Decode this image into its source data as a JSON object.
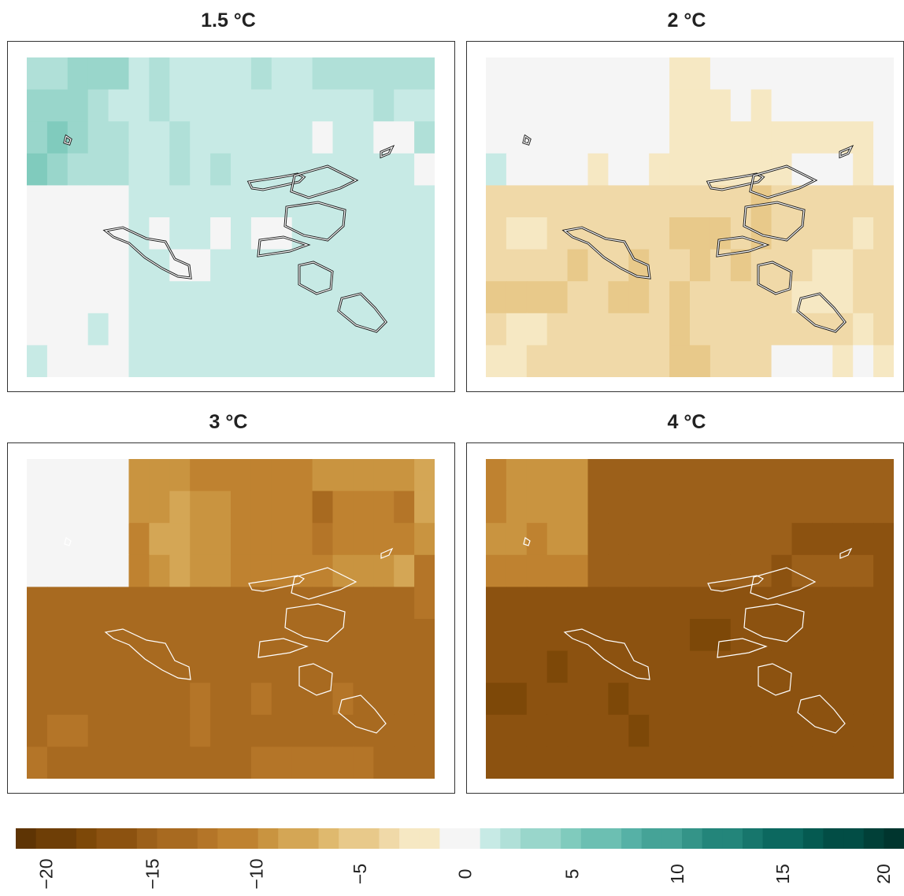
{
  "panels": [
    {
      "title": "1.5 °C",
      "region_values": [
        [
          3,
          3,
          5,
          5,
          4,
          2,
          3,
          2,
          2,
          1,
          2,
          3,
          2,
          2,
          3,
          3,
          3,
          3,
          3,
          3
        ],
        [
          4,
          4,
          4,
          3,
          2,
          2,
          3,
          2,
          2,
          2,
          2,
          2,
          2,
          2,
          2,
          2,
          2,
          3,
          2,
          2
        ],
        [
          4,
          6,
          4,
          3,
          3,
          2,
          2,
          3,
          2,
          2,
          2,
          2,
          2,
          2,
          0,
          2,
          2,
          0,
          0,
          3
        ],
        [
          6,
          4,
          3,
          3,
          3,
          1,
          2,
          3,
          2,
          3,
          2,
          2,
          2,
          2,
          2,
          2,
          2,
          2,
          2,
          0
        ]
      ],
      "south_values": [
        [
          0,
          0,
          0,
          0,
          0,
          1,
          1,
          1,
          1,
          1,
          1,
          1,
          1,
          1,
          1,
          1,
          1,
          1,
          1,
          1
        ],
        [
          0,
          0,
          0,
          0,
          0,
          1,
          0,
          1,
          1,
          0,
          1,
          0,
          0,
          1,
          1,
          1,
          1,
          1,
          1,
          1
        ],
        [
          0,
          0,
          0,
          0,
          0,
          1,
          1,
          0,
          0,
          1,
          1,
          1,
          1,
          1,
          1,
          1,
          1,
          1,
          1,
          1
        ],
        [
          0,
          0,
          0,
          0,
          0,
          1,
          1,
          1,
          1,
          1,
          1,
          1,
          1,
          1,
          1,
          1,
          1,
          1,
          1,
          1
        ],
        [
          0,
          0,
          0,
          1,
          0,
          1,
          1,
          1,
          1,
          1,
          1,
          1,
          1,
          1,
          1,
          1,
          1,
          1,
          1,
          1
        ],
        [
          1,
          0,
          0,
          0,
          0,
          1,
          1,
          1,
          1,
          1,
          1,
          1,
          1,
          1,
          1,
          1,
          1,
          1,
          1,
          1
        ]
      ]
    },
    {
      "title": "2 °C",
      "region_values": [
        [
          0,
          0,
          0,
          0,
          0,
          0,
          0,
          0,
          0,
          -1,
          -1,
          0,
          0,
          0,
          0,
          0,
          0,
          0,
          0,
          0
        ],
        [
          0,
          0,
          0,
          0,
          0,
          0,
          0,
          0,
          0,
          -1,
          -1,
          -1,
          0,
          -1,
          0,
          0,
          0,
          0,
          0,
          0
        ],
        [
          0,
          0,
          0,
          0,
          0,
          0,
          0,
          0,
          0,
          -1,
          -1,
          -1,
          -1,
          -1,
          -2,
          -2,
          -2,
          -2,
          -2,
          0
        ],
        [
          1,
          0,
          0,
          0,
          0,
          -1,
          0,
          0,
          -1,
          -1,
          -1,
          -1,
          -1,
          -1,
          -1,
          0,
          0,
          0,
          -2,
          0
        ]
      ],
      "south_values": [
        [
          -3,
          -3,
          -3,
          -3,
          -3,
          -3,
          -3,
          -3,
          -3,
          -3,
          -3,
          -3,
          -3,
          -4,
          -3,
          -3,
          -3,
          -3,
          -3,
          -3
        ],
        [
          -3,
          -2,
          -2,
          -3,
          -3,
          -3,
          -3,
          -3,
          -3,
          -4,
          -4,
          -4,
          -3,
          -4,
          -3,
          -3,
          -3,
          -3,
          -2,
          -3
        ],
        [
          -3,
          -3,
          -3,
          -3,
          -4,
          -3,
          -3,
          -4,
          -3,
          -3,
          -4,
          -3,
          -4,
          -3,
          -3,
          -3,
          -2,
          -2,
          -3,
          -3
        ],
        [
          -4,
          -4,
          -4,
          -4,
          -3,
          -3,
          -4,
          -4,
          -3,
          -4,
          -3,
          -3,
          -3,
          -3,
          -3,
          -2,
          -2,
          -2,
          -3,
          -3
        ],
        [
          -3,
          -2,
          -2,
          -3,
          -3,
          -3,
          -3,
          -3,
          -3,
          -4,
          -3,
          -3,
          -3,
          -3,
          -3,
          -3,
          -3,
          -3,
          -2,
          -3
        ],
        [
          -2,
          -2,
          -3,
          -3,
          -3,
          -3,
          -3,
          -3,
          -3,
          -4,
          -4,
          -3,
          -3,
          -3,
          0,
          0,
          0,
          -2,
          0,
          -2
        ]
      ]
    },
    {
      "title": "3 °C",
      "region_values": [
        [
          0,
          0,
          0,
          0,
          0,
          -9,
          -9,
          -9,
          -11,
          -11,
          -10,
          -10,
          -10,
          -10,
          -9,
          -9,
          -9,
          -9,
          -9,
          -8
        ],
        [
          0,
          0,
          0,
          0,
          0,
          -9,
          -9,
          -8,
          -9,
          -9,
          -10,
          -10,
          -10,
          -10,
          -13,
          -11,
          -11,
          -11,
          -12,
          -8
        ],
        [
          0,
          0,
          0,
          0,
          0,
          -10,
          -8,
          -8,
          -9,
          -9,
          -10,
          -10,
          -10,
          -11,
          -12,
          -11,
          -11,
          -11,
          -11,
          -9
        ],
        [
          0,
          0,
          0,
          0,
          0,
          -11,
          -9,
          -8,
          -9,
          -9,
          -10,
          -10,
          -10,
          -10,
          -10,
          -9,
          -9,
          -9,
          -7,
          -12
        ]
      ],
      "south_values": [
        [
          -13,
          -13,
          -13,
          -13,
          -14,
          -14,
          -13,
          -13,
          -13,
          -13,
          -14,
          -14,
          -13,
          -13,
          -13,
          -13,
          -13,
          -13,
          -13,
          -12
        ],
        [
          -13,
          -13,
          -13,
          -13,
          -13,
          -13,
          -13,
          -13,
          -14,
          -13,
          -13,
          -13,
          -13,
          -13,
          -13,
          -13,
          -13,
          -13,
          -13,
          -13
        ],
        [
          -14,
          -14,
          -14,
          -14,
          -13,
          -13,
          -13,
          -14,
          -14,
          -14,
          -13,
          -13,
          -13,
          -13,
          -13,
          -13,
          -13,
          -13,
          -13,
          -13
        ],
        [
          -14,
          -14,
          -14,
          -14,
          -14,
          -13,
          -13,
          -13,
          -12,
          -13,
          -13,
          -12,
          -13,
          -13,
          -13,
          -12,
          -13,
          -13,
          -13,
          -13
        ],
        [
          -13,
          -12,
          -12,
          -13,
          -13,
          -13,
          -13,
          -13,
          -12,
          -13,
          -13,
          -13,
          -13,
          -13,
          -13,
          -13,
          -13,
          -13,
          -13,
          -13
        ],
        [
          -12,
          -13,
          -13,
          -13,
          -13,
          -13,
          -13,
          -13,
          -13,
          -13,
          -13,
          -12,
          -12,
          -12,
          -12,
          -12,
          -12,
          -13,
          -13,
          -13
        ]
      ]
    },
    {
      "title": "4 °C",
      "region_values": [
        [
          -10,
          -9,
          -9,
          -9,
          -9,
          -15,
          -15,
          -15,
          -15,
          -15,
          -15,
          -15,
          -15,
          -15,
          -15,
          -15,
          -15,
          -15,
          -15,
          -15
        ],
        [
          -10,
          -9,
          -9,
          -9,
          -9,
          -15,
          -15,
          -15,
          -15,
          -15,
          -15,
          -15,
          -15,
          -15,
          -15,
          -15,
          -15,
          -15,
          -15,
          -15
        ],
        [
          -9,
          -9,
          -10,
          -9,
          -9,
          -15,
          -15,
          -15,
          -15,
          -15,
          -15,
          -15,
          -15,
          -15,
          -15,
          -16,
          -16,
          -16,
          -16,
          -16
        ],
        [
          -10,
          -10,
          -10,
          -10,
          -10,
          -15,
          -15,
          -15,
          -15,
          -15,
          -15,
          -15,
          -15,
          -15,
          -16,
          -15,
          -15,
          -15,
          -15,
          -16
        ]
      ],
      "south_values": [
        [
          -17,
          -17,
          -17,
          -17,
          -17,
          -17,
          -17,
          -17,
          -17,
          -17,
          -17,
          -17,
          -17,
          -17,
          -17,
          -17,
          -17,
          -17,
          -17,
          -17
        ],
        [
          -17,
          -17,
          -17,
          -17,
          -17,
          -17,
          -17,
          -17,
          -17,
          -17,
          -18,
          -18,
          -17,
          -17,
          -17,
          -17,
          -17,
          -17,
          -17,
          -17
        ],
        [
          -17,
          -17,
          -17,
          -18,
          -17,
          -17,
          -17,
          -17,
          -17,
          -17,
          -17,
          -17,
          -17,
          -17,
          -17,
          -17,
          -17,
          -17,
          -17,
          -17
        ],
        [
          -18,
          -18,
          -17,
          -17,
          -17,
          -17,
          -18,
          -17,
          -17,
          -17,
          -17,
          -17,
          -17,
          -17,
          -17,
          -17,
          -17,
          -17,
          -17,
          -17
        ],
        [
          -17,
          -17,
          -17,
          -17,
          -17,
          -17,
          -17,
          -18,
          -17,
          -17,
          -17,
          -17,
          -17,
          -17,
          -17,
          -17,
          -17,
          -17,
          -17,
          -17
        ],
        [
          -17,
          -17,
          -17,
          -17,
          -17,
          -17,
          -17,
          -17,
          -17,
          -17,
          -17,
          -17,
          -17,
          -16,
          -16,
          -16,
          -16,
          -16,
          -16,
          -17
        ]
      ]
    }
  ],
  "legend": {
    "min": -22,
    "max": 22,
    "tick_labels": [
      "−20",
      "−15",
      "−10",
      "−5",
      "0",
      "5",
      "10",
      "15",
      "20"
    ],
    "tick_values": [
      -20,
      -15,
      -10,
      -5,
      0,
      5,
      10,
      15,
      20
    ]
  },
  "colors": {
    "zero": "#f5f5f5",
    "brown_scale": [
      "#f6e8c3",
      "#f0d9a8",
      "#e8c98a",
      "#dfb96e",
      "#d4a655",
      "#c99440",
      "#bf8230",
      "#b47528",
      "#a86a20",
      "#9c601a",
      "#8c5210",
      "#7d4808",
      "#6e3e06",
      "#5e3404",
      "#4f2b03"
    ],
    "teal_scale": [
      "#c7eae5",
      "#b0e0d8",
      "#99d6cb",
      "#80cbbd",
      "#6cbfb2",
      "#56b1a6",
      "#45a397",
      "#349488",
      "#23857a",
      "#17766c",
      "#0c685f",
      "#055a51",
      "#024d45",
      "#014038",
      "#00352e"
    ],
    "outline": "#ffffff"
  }
}
